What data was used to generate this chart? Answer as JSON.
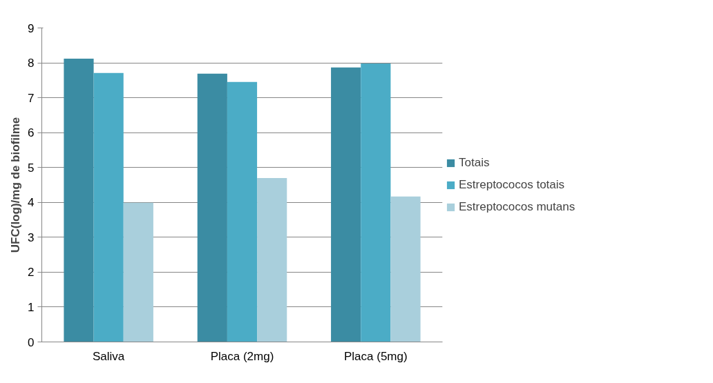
{
  "chart_data": {
    "type": "bar",
    "ylabel": "UFC(log)/mg de biofilme",
    "categories": [
      "Saliva",
      "Placa (2mg)",
      "Placa (5mg)"
    ],
    "series": [
      {
        "name": "Totais",
        "color": "#3b8ca3",
        "values": [
          8.12,
          7.69,
          7.87
        ]
      },
      {
        "name": "Estreptococos totais",
        "color": "#4bacc6",
        "values": [
          7.71,
          7.45,
          7.98
        ]
      },
      {
        "name": "Estreptococos mutans",
        "color": "#a9cfdc",
        "values": [
          3.99,
          4.7,
          4.17
        ]
      }
    ],
    "ylim": [
      0,
      9
    ],
    "yticks": [
      0,
      1,
      2,
      3,
      4,
      5,
      6,
      7,
      8,
      9
    ],
    "grid": "y",
    "legend": "right"
  }
}
